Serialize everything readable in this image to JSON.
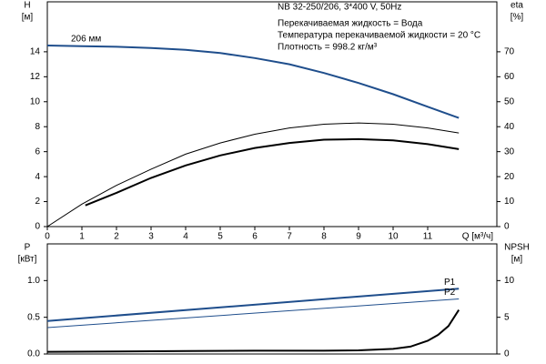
{
  "chart_data": [
    {
      "type": "line",
      "annotations": [
        "NB 32-250/206, 3*400 V, 50Hz",
        "Перекачиваемая жидкость = Вода",
        "Температура перекачиваемой жидкости = 20 °C",
        "Плотность = 998.2 кг/м³"
      ],
      "y_label": "H",
      "y_unit": "[м]",
      "y2_label": "eta",
      "y2_unit": "[%]",
      "x_label": "Q [м³/ч]",
      "xlim": [
        0,
        13
      ],
      "xticks": [
        0,
        1,
        2,
        3,
        4,
        5,
        6,
        7,
        8,
        9,
        10,
        11
      ],
      "ylim": [
        0,
        18
      ],
      "yticks": [
        0,
        2,
        4,
        6,
        8,
        10,
        12,
        14
      ],
      "y2lim": [
        0,
        90
      ],
      "y2ticks": [
        0,
        10,
        20,
        30,
        40,
        50,
        60,
        70
      ],
      "series": [
        {
          "name": "206 мм",
          "color": "#1f4e8c",
          "width": 2,
          "x": [
            0,
            1,
            2,
            3,
            4,
            5,
            6,
            7,
            8,
            9,
            10,
            11,
            11.9
          ],
          "values": [
            14.5,
            14.45,
            14.4,
            14.3,
            14.15,
            13.9,
            13.5,
            13.0,
            12.3,
            11.5,
            10.6,
            9.6,
            8.7
          ]
        },
        {
          "color": "#000000",
          "width": 1,
          "axis": "y2",
          "x": [
            0,
            1,
            2,
            3,
            4,
            5,
            6,
            7,
            8,
            9,
            10,
            11,
            11.9
          ],
          "values": [
            0,
            9,
            16.5,
            23,
            29,
            33.5,
            37,
            39.5,
            41,
            41.5,
            41,
            39.5,
            37.5
          ]
        },
        {
          "color": "#000000",
          "width": 2,
          "axis": "y2",
          "x": [
            1.1,
            2,
            3,
            4,
            5,
            6,
            7,
            8,
            9,
            10,
            11,
            11.9
          ],
          "values": [
            8.5,
            13.5,
            19.5,
            24.5,
            28.5,
            31.5,
            33.5,
            34.8,
            35,
            34.5,
            33,
            31
          ]
        }
      ]
    },
    {
      "type": "line",
      "y_label": "P",
      "y_unit": "[кВт]",
      "y2_label": "NPSH",
      "y2_unit": "[м]",
      "xlim": [
        0,
        13
      ],
      "ylim": [
        0,
        1.5
      ],
      "yticks": [
        {
          "value": 0,
          "label": "0.0"
        },
        0.5,
        {
          "value": 1,
          "label": "1.0"
        }
      ],
      "y2lim": [
        0,
        15
      ],
      "y2ticks": [
        0,
        5,
        10
      ],
      "series": [
        {
          "name": "P1",
          "color": "#1f4e8c",
          "width": 2,
          "x": [
            0,
            11.9
          ],
          "values": [
            0.45,
            0.89
          ]
        },
        {
          "name": "P2",
          "color": "#1f4e8c",
          "width": 1,
          "x": [
            0,
            11.9
          ],
          "values": [
            0.36,
            0.75
          ]
        },
        {
          "color": "#000000",
          "width": 2,
          "axis": "y2",
          "x": [
            0,
            2,
            4,
            6,
            8,
            9,
            10,
            10.5,
            11,
            11.3,
            11.6,
            11.9
          ],
          "values": [
            0.3,
            0.35,
            0.4,
            0.45,
            0.45,
            0.5,
            0.7,
            1.0,
            1.8,
            2.6,
            3.8,
            6.0
          ]
        }
      ]
    }
  ]
}
